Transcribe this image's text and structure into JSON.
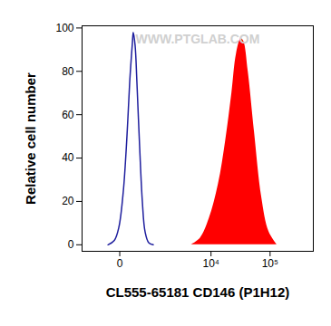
{
  "chart_data": {
    "type": "line",
    "annotation": "WWW.PTGLAB.COM",
    "x_label": "CL555-65181 CD146 (P1H12)",
    "y_label": "Relative cell number",
    "series": [
      {
        "type": "line",
        "color": "#1f1f9e",
        "x": [
          -175,
          -71,
          -11,
          46,
          98,
          143,
          192,
          209,
          247,
          287,
          353,
          425,
          506,
          627,
          805
        ],
        "values": [
          0,
          2,
          8,
          25,
          50,
          75,
          93,
          98,
          92,
          75,
          45,
          20,
          6,
          1,
          0
        ]
      },
      {
        "type": "area",
        "color": "#ff0000",
        "x": [
          4500,
          6500,
          9300,
          13400,
          17800,
          22700,
          27100,
          32400,
          35800,
          42800,
          54600,
          72200,
          95800,
          131000
        ],
        "values": [
          0,
          3,
          12,
          28,
          48,
          70,
          88,
          95,
          94,
          80,
          52,
          22,
          6,
          0
        ]
      }
    ],
    "xlim": [
      -1000,
      530000
    ],
    "xticks": [
      0,
      {
        "value": 10000,
        "label": "10⁴"
      },
      {
        "value": 100000,
        "label": "10⁵"
      }
    ],
    "ylim": [
      -3,
      101
    ],
    "yticks": [
      0,
      20,
      40,
      60,
      80,
      100
    ],
    "grid": false
  }
}
